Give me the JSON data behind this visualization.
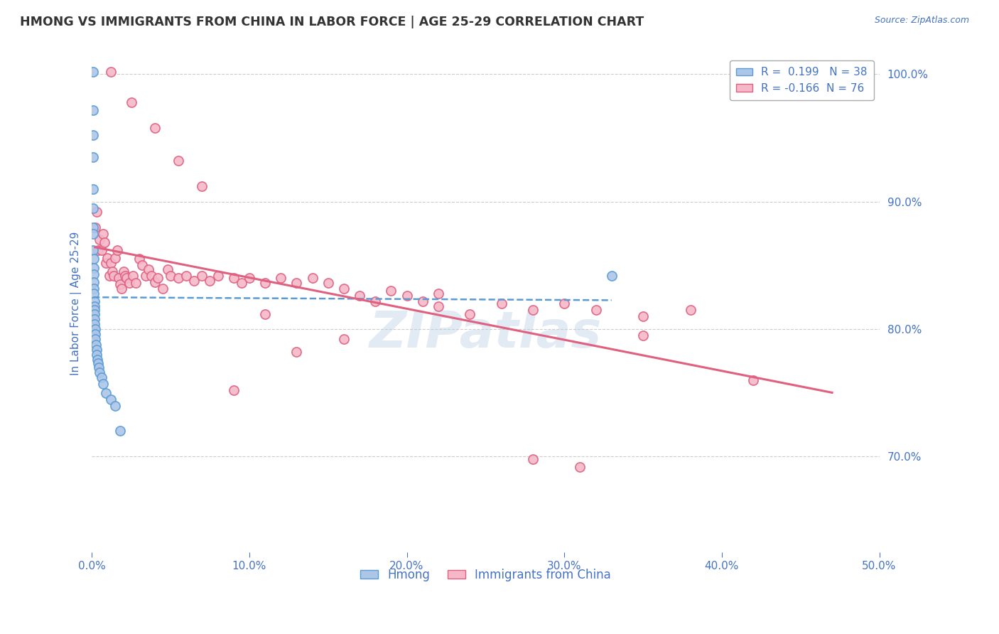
{
  "title": "HMONG VS IMMIGRANTS FROM CHINA IN LABOR FORCE | AGE 25-29 CORRELATION CHART",
  "source": "Source: ZipAtlas.com",
  "ylabel": "In Labor Force | Age 25-29",
  "xlim": [
    0.0,
    0.5
  ],
  "ylim": [
    0.625,
    1.015
  ],
  "xticks": [
    0.0,
    0.1,
    0.2,
    0.3,
    0.4,
    0.5
  ],
  "xtick_labels": [
    "0.0%",
    "10.0%",
    "20.0%",
    "30.0%",
    "40.0%",
    "50.0%"
  ],
  "yticks": [
    0.7,
    0.8,
    0.9,
    1.0
  ],
  "ytick_labels": [
    "70.0%",
    "80.0%",
    "90.0%",
    "100.0%"
  ],
  "grid_color": "#cccccc",
  "background_color": "#ffffff",
  "title_color": "#333333",
  "axis_color": "#4472c4",
  "hmong_face_color": "#adc6e8",
  "hmong_edge_color": "#5b9bd5",
  "china_face_color": "#f4b8c8",
  "china_edge_color": "#e06080",
  "hmong_R": 0.199,
  "hmong_N": 38,
  "china_R": -0.166,
  "china_N": 76,
  "legend_labels": [
    "Hmong",
    "Immigrants from China"
  ],
  "watermark": "ZIPatlas",
  "hmong_x": [
    0.0008,
    0.0008,
    0.0008,
    0.0008,
    0.0008,
    0.0009,
    0.0009,
    0.001,
    0.001,
    0.0012,
    0.0012,
    0.0013,
    0.0013,
    0.0014,
    0.0014,
    0.0015,
    0.0015,
    0.0016,
    0.0016,
    0.0017,
    0.0018,
    0.002,
    0.002,
    0.0022,
    0.0025,
    0.003,
    0.003,
    0.0035,
    0.004,
    0.0045,
    0.005,
    0.006,
    0.007,
    0.009,
    0.012,
    0.015,
    0.018,
    0.33
  ],
  "hmong_y": [
    1.002,
    0.972,
    0.952,
    0.935,
    0.91,
    0.895,
    0.88,
    0.875,
    0.862,
    0.855,
    0.848,
    0.843,
    0.837,
    0.832,
    0.828,
    0.822,
    0.818,
    0.815,
    0.812,
    0.808,
    0.804,
    0.8,
    0.796,
    0.792,
    0.788,
    0.784,
    0.78,
    0.776,
    0.773,
    0.77,
    0.766,
    0.762,
    0.757,
    0.75,
    0.745,
    0.74,
    0.72,
    0.842
  ],
  "china_x": [
    0.002,
    0.003,
    0.004,
    0.005,
    0.006,
    0.007,
    0.008,
    0.009,
    0.01,
    0.011,
    0.012,
    0.013,
    0.014,
    0.015,
    0.016,
    0.017,
    0.018,
    0.019,
    0.02,
    0.021,
    0.022,
    0.024,
    0.026,
    0.028,
    0.03,
    0.032,
    0.034,
    0.036,
    0.038,
    0.04,
    0.042,
    0.045,
    0.048,
    0.05,
    0.055,
    0.06,
    0.065,
    0.07,
    0.075,
    0.08,
    0.09,
    0.095,
    0.1,
    0.11,
    0.12,
    0.13,
    0.14,
    0.15,
    0.16,
    0.17,
    0.18,
    0.19,
    0.2,
    0.21,
    0.22,
    0.24,
    0.26,
    0.28,
    0.3,
    0.32,
    0.35,
    0.38,
    0.35,
    0.012,
    0.025,
    0.04,
    0.055,
    0.07,
    0.09,
    0.11,
    0.13,
    0.16,
    0.31,
    0.22,
    0.42,
    0.28
  ],
  "china_y": [
    0.88,
    0.892,
    0.862,
    0.87,
    0.862,
    0.875,
    0.868,
    0.852,
    0.856,
    0.842,
    0.852,
    0.845,
    0.842,
    0.856,
    0.862,
    0.84,
    0.835,
    0.832,
    0.845,
    0.842,
    0.84,
    0.836,
    0.842,
    0.836,
    0.855,
    0.85,
    0.842,
    0.847,
    0.842,
    0.837,
    0.84,
    0.832,
    0.847,
    0.842,
    0.84,
    0.842,
    0.838,
    0.842,
    0.838,
    0.842,
    0.84,
    0.836,
    0.84,
    0.836,
    0.84,
    0.836,
    0.84,
    0.836,
    0.832,
    0.826,
    0.822,
    0.83,
    0.826,
    0.822,
    0.818,
    0.812,
    0.82,
    0.815,
    0.82,
    0.815,
    0.81,
    0.815,
    0.795,
    1.002,
    0.978,
    0.958,
    0.932,
    0.912,
    0.752,
    0.812,
    0.782,
    0.792,
    0.692,
    0.828,
    0.76,
    0.698
  ]
}
